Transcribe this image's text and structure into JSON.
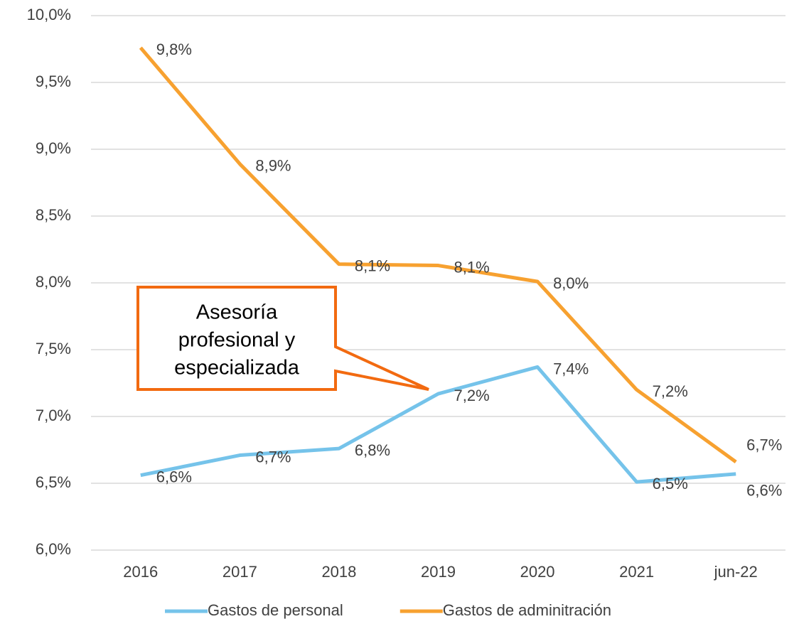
{
  "chart_data": {
    "type": "line",
    "categories": [
      "2016",
      "2017",
      "2018",
      "2019",
      "2020",
      "2021",
      "jun-22"
    ],
    "series": [
      {
        "name": "Gastos de personal",
        "color": "#75c3ea",
        "values": [
          6.56,
          6.71,
          6.76,
          7.17,
          7.37,
          6.51,
          6.57
        ],
        "value_labels": [
          "6,6%",
          "6,7%",
          "6,8%",
          "7,2%",
          "7,4%",
          "6,5%",
          "6,6%"
        ]
      },
      {
        "name": "Gastos de adminitración",
        "color": "#f7a130",
        "values": [
          9.76,
          8.89,
          8.14,
          8.13,
          8.01,
          7.2,
          6.66
        ],
        "value_labels": [
          "9,8%",
          "8,9%",
          "8,1%",
          "8,1%",
          "8,0%",
          "7,2%",
          "6,7%"
        ]
      }
    ],
    "ylim": [
      6,
      10
    ],
    "yticks": [
      {
        "value": 6,
        "label": "6,0%"
      },
      {
        "value": 6.5,
        "label": "6,5%"
      },
      {
        "value": 7,
        "label": "7,0%"
      },
      {
        "value": 7.5,
        "label": "7,5%"
      },
      {
        "value": 8,
        "label": "8,0%"
      },
      {
        "value": 8.5,
        "label": "8,5%"
      },
      {
        "value": 9,
        "label": "9,0%"
      },
      {
        "value": 9.5,
        "label": "9,5%"
      },
      {
        "value": 10,
        "label": "10,0%"
      }
    ],
    "grid": true,
    "legend": "bottom",
    "annotation": {
      "lines": [
        "Asesoría",
        "profesional y",
        "especializada"
      ],
      "color": "#f26a10"
    }
  }
}
